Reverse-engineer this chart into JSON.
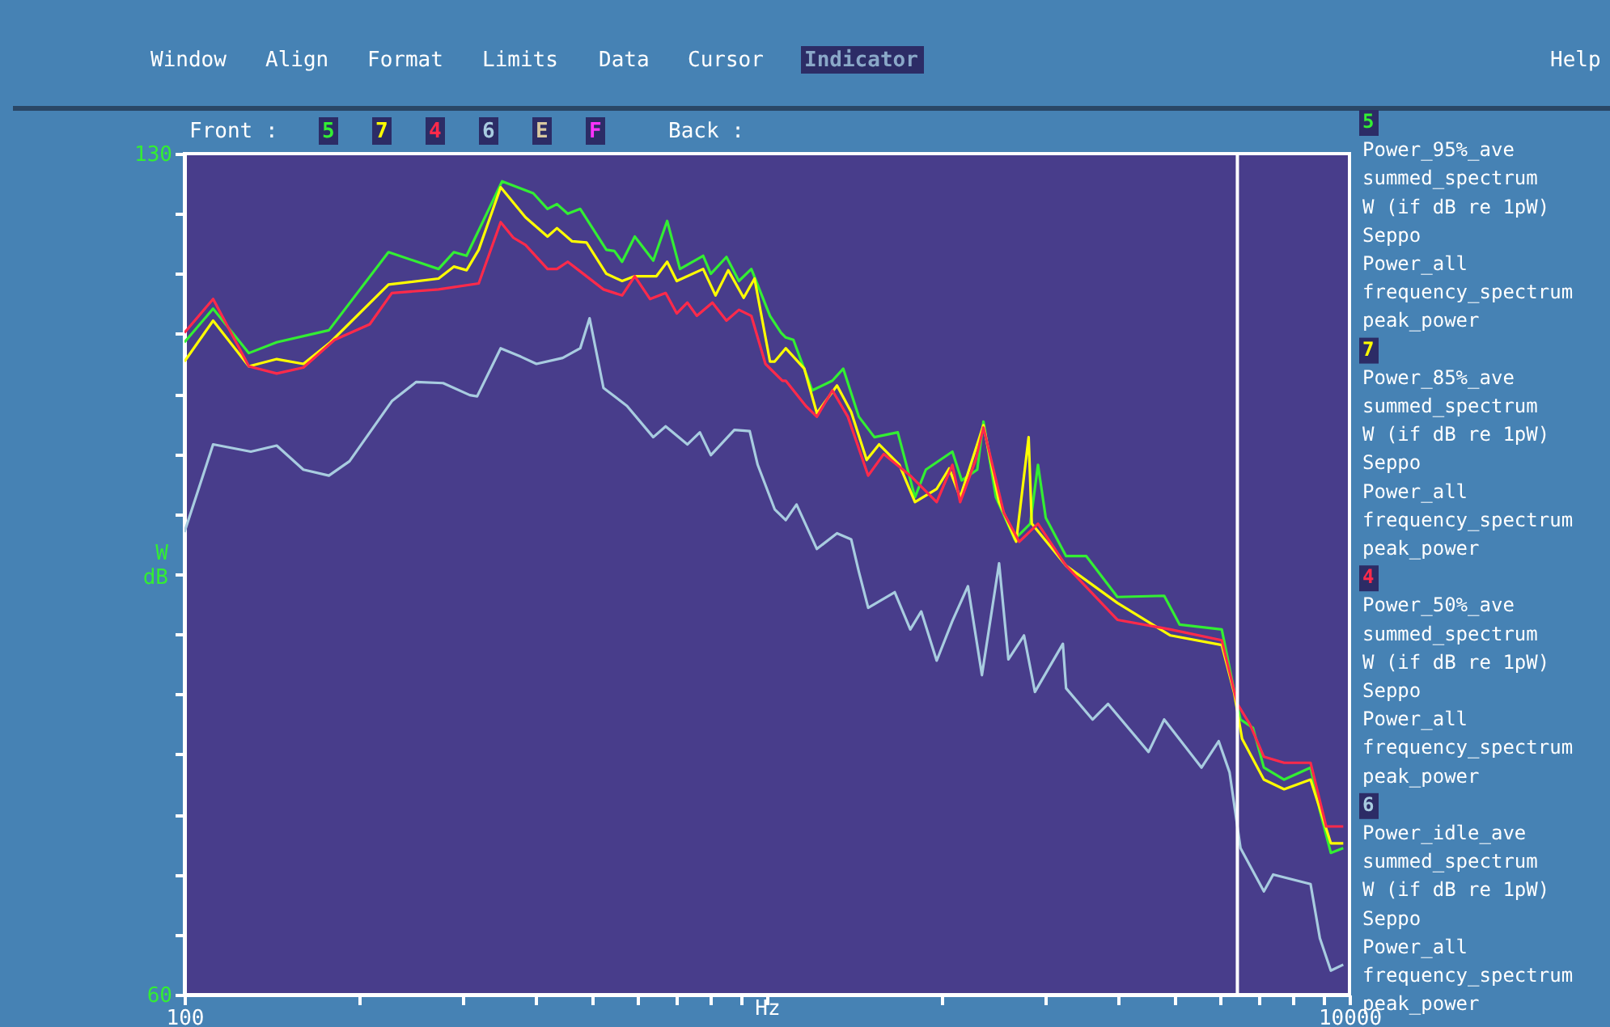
{
  "chart_data": {
    "type": "line",
    "xlabel": "Hz",
    "ylabel": "W dB",
    "log": "x",
    "legend": "right",
    "xlim": [
      100,
      10000
    ],
    "ylim": [
      60,
      130
    ],
    "xticks": [
      100,
      {
        "value": 200,
        "label": null
      },
      {
        "value": 300,
        "label": null
      },
      {
        "value": 400,
        "label": null
      },
      {
        "value": 500,
        "label": null
      },
      {
        "value": 600,
        "label": null
      },
      {
        "value": 700,
        "label": null
      },
      {
        "value": 800,
        "label": null
      },
      {
        "value": 900,
        "label": null
      },
      {
        "value": 1000,
        "label": null
      },
      {
        "value": 2000,
        "label": null
      },
      {
        "value": 3000,
        "label": null
      },
      {
        "value": 4000,
        "label": null
      },
      {
        "value": 5000,
        "label": null
      },
      {
        "value": 6000,
        "label": null
      },
      {
        "value": 7000,
        "label": null
      },
      {
        "value": 8000,
        "label": null
      },
      {
        "value": 9000,
        "label": null
      },
      10000
    ],
    "yticks": [
      60,
      {
        "value": 65,
        "label": null
      },
      {
        "value": 70,
        "label": null
      },
      {
        "value": 75,
        "label": null
      },
      {
        "value": 80,
        "label": null
      },
      {
        "value": 85,
        "label": null
      },
      {
        "value": 90,
        "label": null
      },
      {
        "value": 95,
        "label": null
      },
      {
        "value": 100,
        "label": null
      },
      {
        "value": 105,
        "label": null
      },
      {
        "value": 110,
        "label": null
      },
      {
        "value": 115,
        "label": null
      },
      {
        "value": 120,
        "label": null
      },
      {
        "value": 125,
        "label": null
      },
      130
    ],
    "ref_lines": [
      {
        "axis": "x",
        "value": 6420,
        "color": "#ffffff"
      }
    ],
    "annotations": [
      "Window",
      "Align",
      "Format",
      "Limits",
      "Data",
      "Cursor",
      "Indicator",
      "Help",
      "Front :",
      "5",
      "7",
      "4",
      "6",
      "E",
      "F",
      "Back :"
    ],
    "series": [
      {
        "name": "5\nPower_95%_ave\nsummed_spectrum\nW (if dB re 1pW)\nSeppo\nPower_all\nfrequency_spectrum\npeak_power",
        "color": "#33ee33",
        "x": [
          100,
          112,
          129,
          144,
          177,
          224,
          273,
          290,
          305,
          351,
          397,
          420,
          436,
          455,
          478,
          530,
          547,
          564,
          593,
          638,
          674,
          709,
          777,
          801,
          852,
          895,
          940,
          1012,
          1057,
          1077,
          1110,
          1196,
          1295,
          1352,
          1438,
          1529,
          1677,
          1795,
          1874,
          2081,
          2159,
          2296,
          2353,
          2472,
          2662,
          2831,
          2919,
          3010,
          3262,
          3533,
          3996,
          4807,
          5111,
          6036,
          6303,
          6500,
          6829,
          7129,
          7723,
          8574,
          8896,
          9289,
          9757
        ],
        "values": [
          114.3,
          117.1,
          113.4,
          114.3,
          115.3,
          121.8,
          120.4,
          121.8,
          121.5,
          127.7,
          126.7,
          125.4,
          125.8,
          125.0,
          125.4,
          122.0,
          121.9,
          121.0,
          123.1,
          121.1,
          124.4,
          120.4,
          121.5,
          120.0,
          121.4,
          119.4,
          120.4,
          116.5,
          115.1,
          114.7,
          114.5,
          110.3,
          111.1,
          112.1,
          108.1,
          106.4,
          106.8,
          101.4,
          103.7,
          105.2,
          102.8,
          103.7,
          107.7,
          101.4,
          97.9,
          99.2,
          104.1,
          99.7,
          96.5,
          96.5,
          93.1,
          93.2,
          90.8,
          90.4,
          85.9,
          82.9,
          82.2,
          78.9,
          77.9,
          78.9,
          75.3,
          71.8,
          72.2
        ]
      },
      {
        "name": "7\nPower_85%_ave\nsummed_spectrum\nW (if dB re 1pW)\nSeppo\nPower_all\nfrequency_spectrum\npeak_power",
        "color": "#ffff00",
        "x": [
          100,
          112,
          129,
          144,
          160,
          178,
          224,
          273,
          290,
          305,
          320,
          349,
          385,
          420,
          436,
          463,
          490,
          530,
          564,
          593,
          646,
          674,
          700,
          777,
          816,
          858,
          912,
          952,
          1012,
          1031,
          1077,
          1159,
          1218,
          1319,
          1395,
          1483,
          1558,
          1688,
          1795,
          1956,
          2055,
          2146,
          2353,
          2503,
          2678,
          2813,
          2848,
          3262,
          3996,
          4927,
          6036,
          6341,
          6540,
          7129,
          7723,
          8574,
          9289,
          9757
        ],
        "values": [
          112.7,
          116.1,
          112.3,
          112.9,
          112.5,
          114.3,
          119.1,
          119.6,
          120.6,
          120.3,
          122.0,
          127.2,
          124.7,
          123.1,
          123.8,
          122.7,
          122.6,
          120.0,
          119.4,
          119.8,
          119.8,
          121.0,
          119.4,
          120.4,
          118.2,
          120.3,
          118.0,
          119.6,
          112.7,
          112.7,
          113.8,
          112.1,
          108.4,
          110.7,
          108.5,
          104.5,
          105.8,
          104.1,
          101.0,
          102.1,
          103.8,
          101.4,
          107.4,
          101.0,
          97.7,
          106.4,
          99.2,
          95.7,
          92.6,
          89.9,
          89.1,
          85.1,
          81.3,
          77.9,
          77.1,
          77.9,
          72.6,
          72.6
        ]
      },
      {
        "name": "4\nPower_50%_ave\nsummed_spectrum\nW (if dB re 1pW)\nSeppo\nPower_all\nfrequency_spectrum\npeak_power",
        "color": "#ff2a4a",
        "x": [
          100,
          112,
          129,
          144,
          160,
          181,
          208,
          227,
          273,
          320,
          349,
          367,
          385,
          420,
          436,
          455,
          475,
          524,
          564,
          593,
          630,
          670,
          700,
          730,
          758,
          806,
          852,
          895,
          940,
          994,
          1063,
          1077,
          1166,
          1218,
          1295,
          1377,
          1492,
          1587,
          1762,
          1956,
          2081,
          2146,
          2282,
          2353,
          2550,
          2711,
          2919,
          3262,
          3996,
          4927,
          6036,
          6420,
          6745,
          7129,
          7723,
          8574,
          9120,
          9757
        ],
        "values": [
          115.1,
          117.9,
          112.3,
          111.7,
          112.2,
          114.5,
          115.8,
          118.4,
          118.7,
          119.2,
          124.3,
          123.0,
          122.4,
          120.4,
          120.4,
          121.0,
          120.3,
          118.7,
          118.2,
          119.8,
          117.9,
          118.4,
          116.7,
          117.6,
          116.5,
          117.6,
          116.1,
          117.0,
          116.5,
          112.5,
          111.1,
          111.1,
          109.0,
          108.1,
          110.3,
          108.1,
          103.2,
          105.0,
          103.2,
          101.0,
          104.1,
          101.0,
          104.5,
          107.2,
          100.1,
          97.7,
          99.2,
          95.7,
          91.2,
          90.4,
          89.5,
          84.2,
          82.5,
          79.8,
          79.3,
          79.3,
          74.0,
          74.0
        ]
      },
      {
        "name": "6\nPower_idle_ave\nsummed_spectrum\nW (if dB re 1pW)\nSeppo\nPower_all\nfrequency_spectrum\npeak_power",
        "color": "#a8cce0",
        "x": [
          100,
          112,
          130,
          144,
          160,
          177,
          192,
          227,
          250,
          278,
          309,
          318,
          349,
          378,
          402,
          446,
          478,
          496,
          524,
          575,
          638,
          670,
          730,
          767,
          801,
          879,
          934,
          964,
          1031,
          1077,
          1124,
          1218,
          1319,
          1395,
          1438,
          1492,
          1657,
          1762,
          1840,
          1956,
          2081,
          2213,
          2339,
          2503,
          2597,
          2762,
          2884,
          3221,
          3262,
          3622,
          3851,
          4519,
          4807,
          5572,
          5963,
          6225,
          6500,
          7129,
          7396,
          8574,
          8896,
          9289,
          9757
        ],
        "values": [
          98.5,
          105.8,
          105.2,
          105.7,
          103.7,
          103.2,
          104.4,
          109.4,
          111.0,
          110.9,
          109.9,
          109.8,
          113.8,
          113.1,
          112.5,
          113.0,
          113.8,
          116.3,
          110.5,
          109.0,
          106.4,
          107.3,
          105.8,
          106.8,
          104.9,
          107.0,
          106.9,
          104.1,
          100.4,
          99.5,
          100.8,
          97.1,
          98.4,
          97.9,
          95.2,
          92.2,
          93.5,
          90.4,
          91.9,
          87.8,
          91.1,
          94.0,
          86.6,
          95.9,
          87.9,
          89.9,
          85.2,
          89.2,
          85.5,
          82.9,
          84.2,
          80.2,
          82.9,
          78.9,
          81.1,
          78.5,
          72.2,
          68.6,
          70.0,
          69.2,
          64.7,
          62.0,
          62.5
        ]
      }
    ]
  }
}
